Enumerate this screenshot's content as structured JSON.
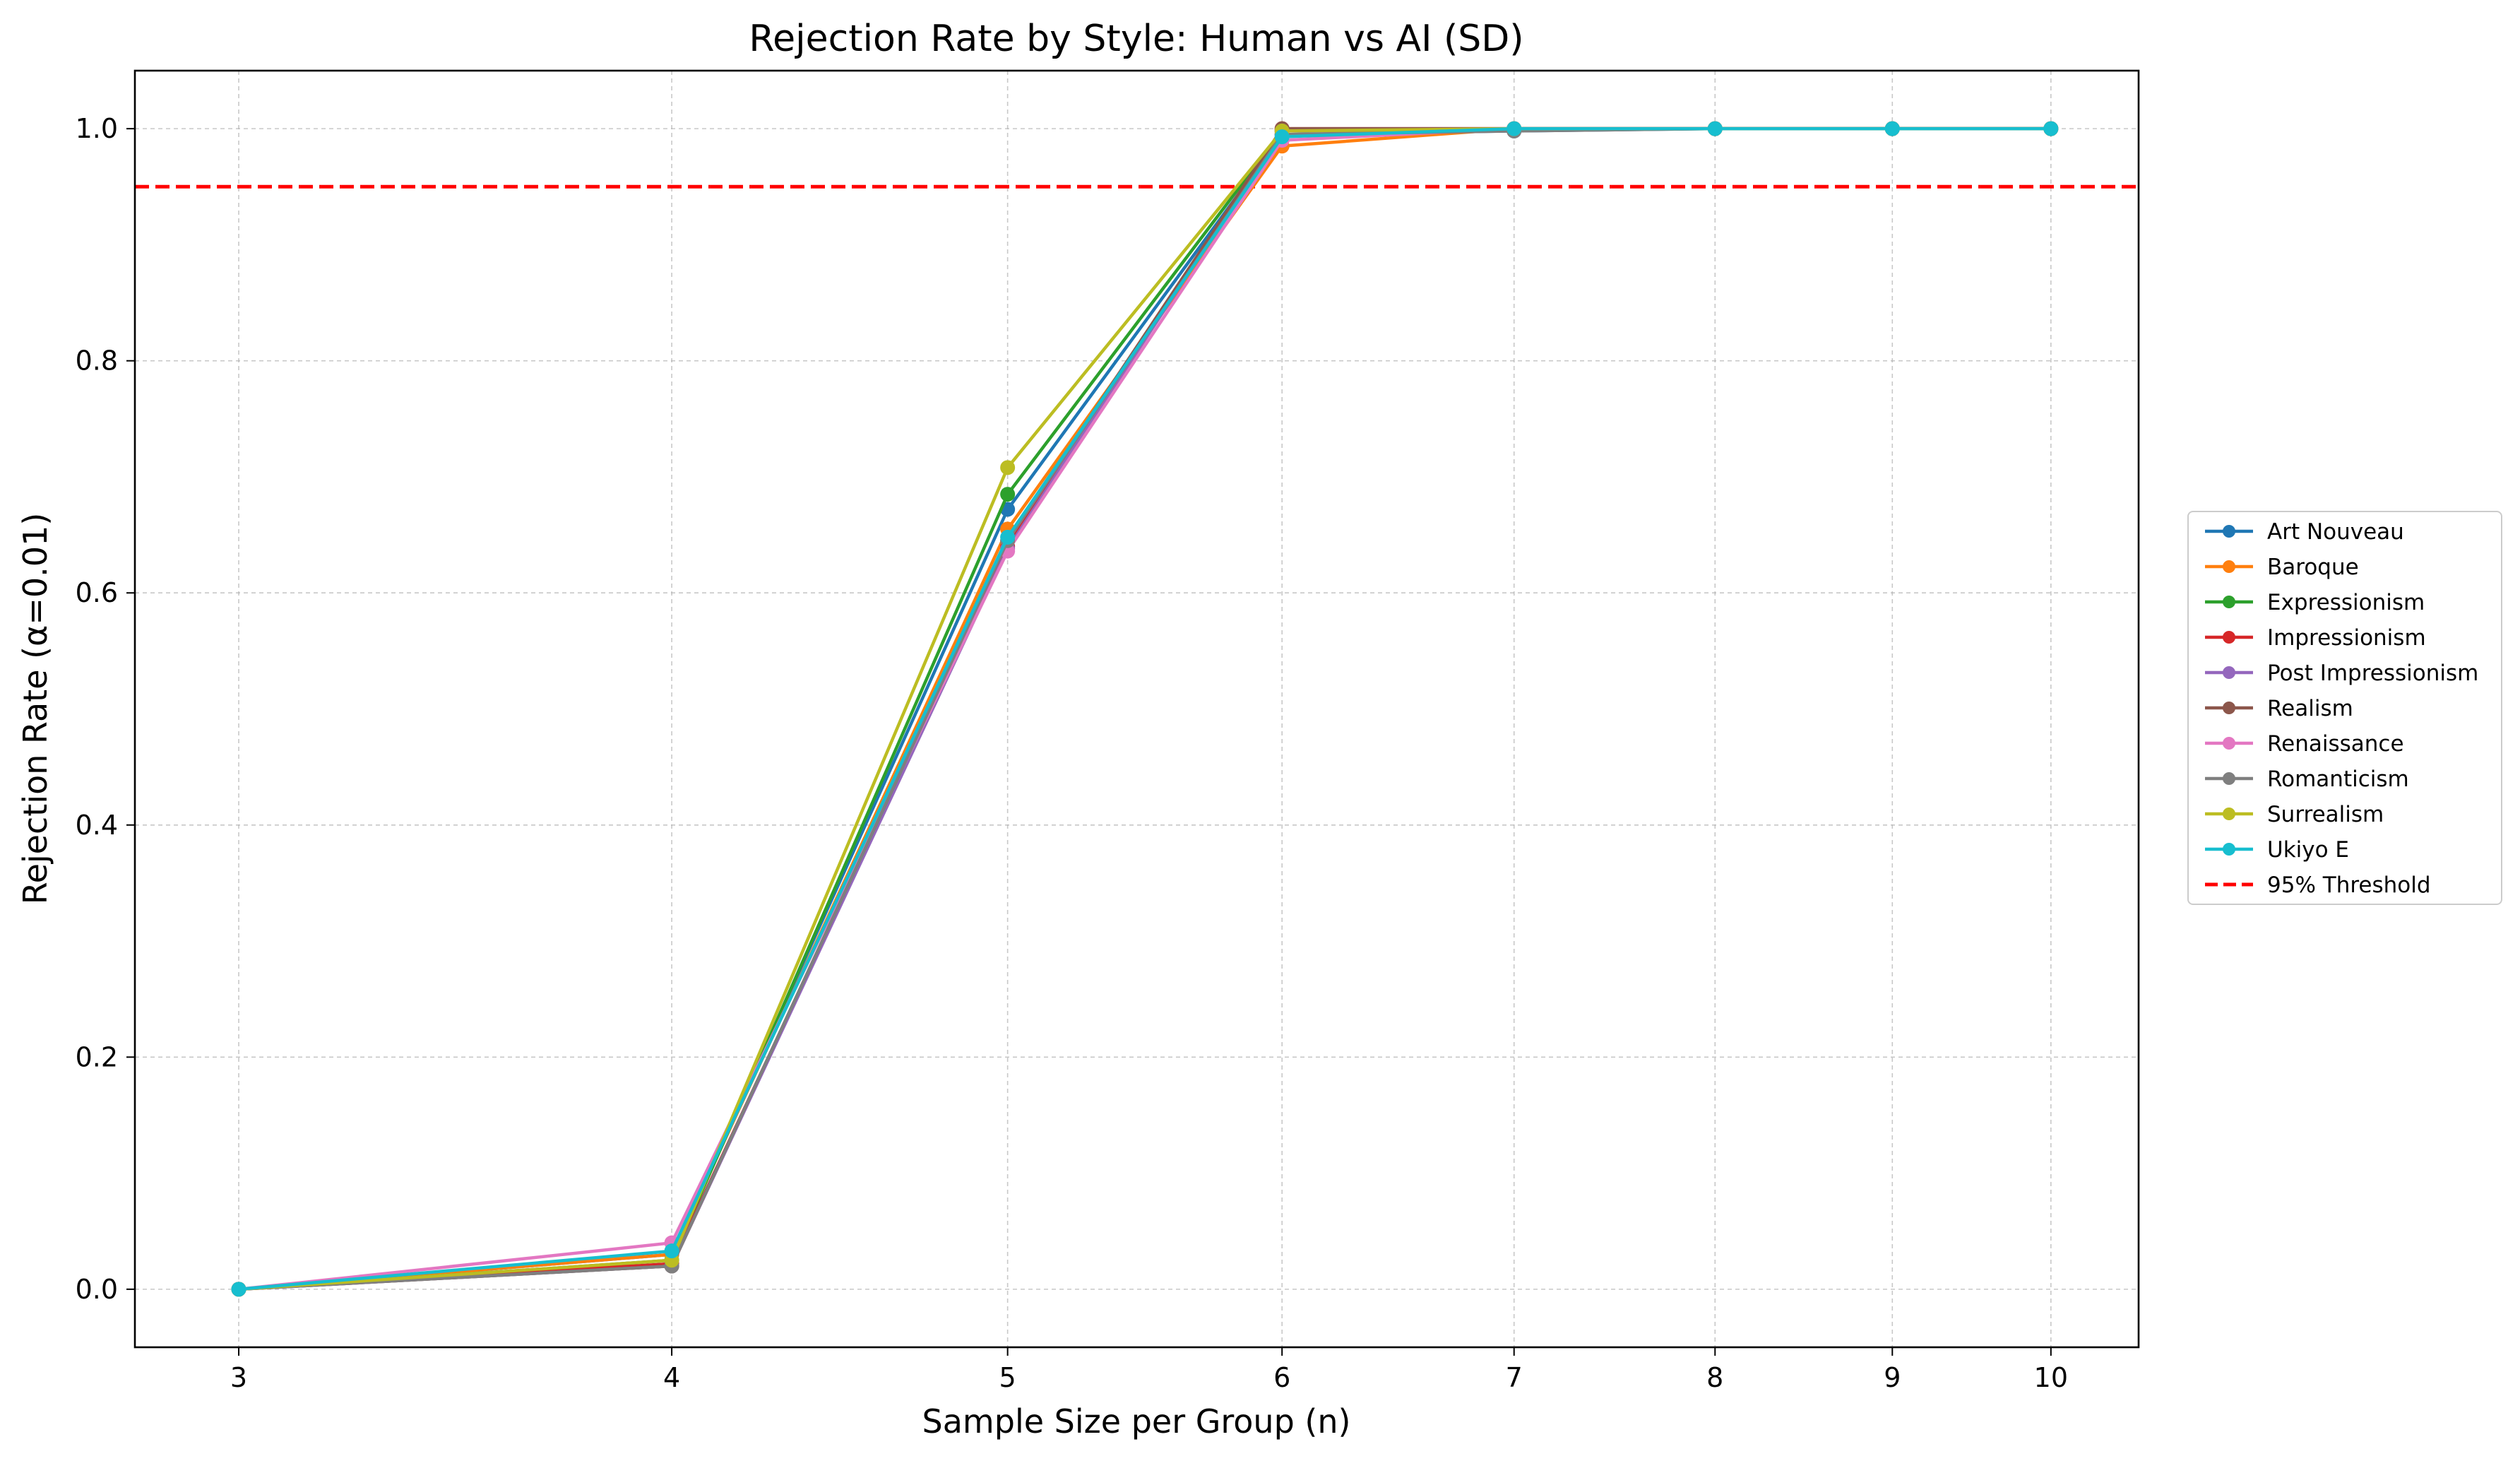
{
  "chart_data": {
    "type": "line",
    "title": "Rejection Rate by Style: Human vs AI (SD)",
    "xlabel": "Sample Size per Group (n)",
    "ylabel": "Rejection Rate (α=0.01)",
    "x": [
      3,
      4,
      5,
      6,
      7,
      8,
      9,
      10
    ],
    "x_scale": "log",
    "xlim": [
      2.8,
      10.6
    ],
    "ylim": [
      -0.05,
      1.05
    ],
    "yticks": [
      "0.0",
      "0.2",
      "0.4",
      "0.6",
      "0.8",
      "1.0"
    ],
    "ytick_values": [
      0,
      0.2,
      0.4,
      0.6,
      0.8,
      1.0
    ],
    "xticks": [
      "3",
      "4",
      "5",
      "6",
      "7",
      "8",
      "9",
      "10"
    ],
    "grid": true,
    "legend_position": "outside-right",
    "series": [
      {
        "name": "Art Nouveau",
        "color": "#1f77b4",
        "values": [
          0.0,
          0.03,
          0.672,
          0.995,
          0.998,
          1.0,
          1.0,
          1.0
        ]
      },
      {
        "name": "Baroque",
        "color": "#ff7f0e",
        "values": [
          0.0,
          0.03,
          0.655,
          0.985,
          1.0,
          1.0,
          1.0,
          1.0
        ]
      },
      {
        "name": "Expressionism",
        "color": "#2ca02c",
        "values": [
          0.0,
          0.025,
          0.685,
          0.998,
          1.0,
          1.0,
          1.0,
          1.0
        ]
      },
      {
        "name": "Impressionism",
        "color": "#d62728",
        "values": [
          0.0,
          0.022,
          0.64,
          1.0,
          1.0,
          1.0,
          1.0,
          1.0
        ]
      },
      {
        "name": "Post Impressionism",
        "color": "#9467bd",
        "values": [
          0.0,
          0.02,
          0.638,
          0.998,
          1.0,
          1.0,
          1.0,
          1.0
        ]
      },
      {
        "name": "Realism",
        "color": "#8c564b",
        "values": [
          0.0,
          0.02,
          0.645,
          1.0,
          1.0,
          1.0,
          1.0,
          1.0
        ]
      },
      {
        "name": "Renaissance",
        "color": "#e377c2",
        "values": [
          0.0,
          0.04,
          0.636,
          0.99,
          1.0,
          1.0,
          1.0,
          1.0
        ]
      },
      {
        "name": "Romanticism",
        "color": "#7f7f7f",
        "values": [
          0.0,
          0.02,
          0.645,
          0.995,
          0.998,
          1.0,
          1.0,
          1.0
        ]
      },
      {
        "name": "Surrealism",
        "color": "#bcbd22",
        "values": [
          0.0,
          0.025,
          0.708,
          0.998,
          1.0,
          1.0,
          1.0,
          1.0
        ]
      },
      {
        "name": "Ukiyo E",
        "color": "#17becf",
        "values": [
          0.0,
          0.033,
          0.648,
          0.993,
          1.0,
          1.0,
          1.0,
          1.0
        ]
      }
    ],
    "threshold": {
      "name": "95% Threshold",
      "value": 0.95,
      "color": "#ff0000",
      "style": "dashed"
    }
  }
}
